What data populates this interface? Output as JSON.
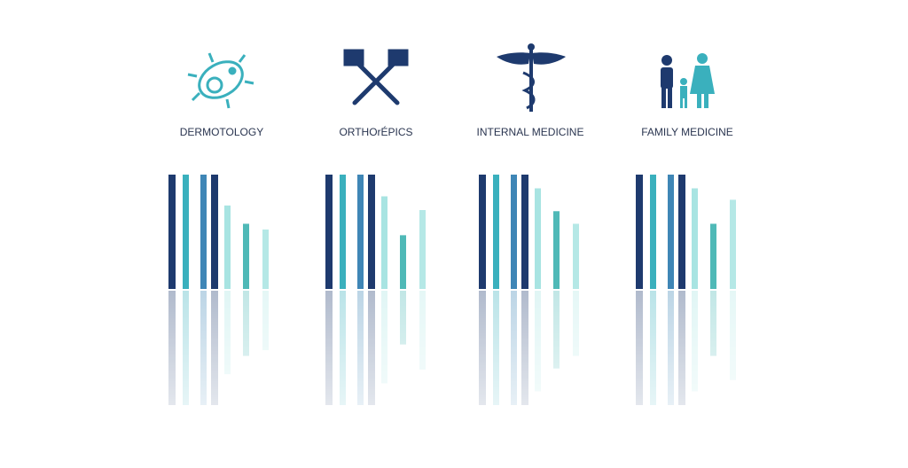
{
  "chart_data": [
    {
      "type": "bar",
      "title": "DERMOTOLOGY",
      "values": [
        100,
        100,
        100,
        100,
        73,
        57,
        52
      ],
      "colors": [
        "#1e3a6e",
        "#3ab0bd",
        "#3f86b6",
        "#1e3a6e",
        "#a8e4e2",
        "#4fb9b7",
        "#b5e8e6"
      ],
      "ylim": [
        0,
        100
      ]
    },
    {
      "type": "bar",
      "title": "ORTHOrÉPICS",
      "values": [
        100,
        100,
        100,
        100,
        81,
        47,
        69
      ],
      "colors": [
        "#1e3a6e",
        "#3ab0bd",
        "#3f86b6",
        "#1e3a6e",
        "#a8e4e2",
        "#4fb9b7",
        "#b5e8e6"
      ],
      "ylim": [
        0,
        100
      ]
    },
    {
      "type": "bar",
      "title": "INTERNAL MEDICINE",
      "values": [
        100,
        100,
        100,
        100,
        88,
        68,
        57
      ],
      "colors": [
        "#1e3a6e",
        "#3ab0bd",
        "#3f86b6",
        "#1e3a6e",
        "#a8e4e2",
        "#4fb9b7",
        "#b5e8e6"
      ],
      "ylim": [
        0,
        100
      ]
    },
    {
      "type": "bar",
      "title": "FAMILY MEDICINE",
      "values": [
        100,
        100,
        100,
        100,
        88,
        57,
        78
      ],
      "colors": [
        "#1e3a6e",
        "#3ab0bd",
        "#3f86b6",
        "#1e3a6e",
        "#a8e4e2",
        "#4fb9b7",
        "#b5e8e6"
      ],
      "ylim": [
        0,
        100
      ]
    }
  ]
}
